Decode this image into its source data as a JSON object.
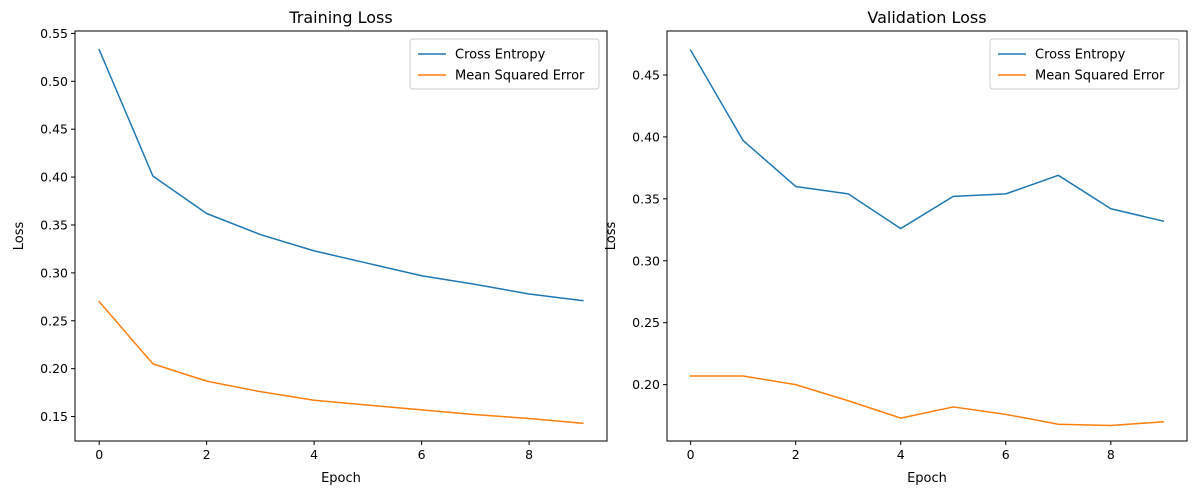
{
  "chart_data": [
    {
      "type": "line",
      "title": "Training Loss",
      "xlabel": "Epoch",
      "ylabel": "Loss",
      "x": [
        0,
        1,
        2,
        3,
        4,
        5,
        6,
        7,
        8,
        9
      ],
      "xlim": [
        -0.45,
        9.45
      ],
      "ylim": [
        0.1245,
        0.5525
      ],
      "xticks": [
        0,
        2,
        4,
        6,
        8
      ],
      "yticks": [
        0.15,
        0.2,
        0.25,
        0.3,
        0.35,
        0.4,
        0.45,
        0.5,
        0.55
      ],
      "xtick_labels": [
        "0",
        "2",
        "4",
        "6",
        "8"
      ],
      "ytick_labels": [
        "0.15",
        "0.20",
        "0.25",
        "0.30",
        "0.35",
        "0.40",
        "0.45",
        "0.50",
        "0.55"
      ],
      "grid": false,
      "legend_position": "upper right",
      "series": [
        {
          "name": "Cross Entropy",
          "color": "#1f77b4",
          "values": [
            0.533,
            0.401,
            0.362,
            0.34,
            0.323,
            0.31,
            0.297,
            0.288,
            0.278,
            0.271
          ]
        },
        {
          "name": "Mean Squared Error",
          "color": "#ff7f0e",
          "values": [
            0.27,
            0.205,
            0.187,
            0.176,
            0.167,
            0.162,
            0.157,
            0.152,
            0.148,
            0.143
          ]
        }
      ]
    },
    {
      "type": "line",
      "title": "Validation Loss",
      "xlabel": "Epoch",
      "ylabel": "Loss",
      "x": [
        0,
        1,
        2,
        3,
        4,
        5,
        6,
        7,
        8,
        9
      ],
      "xlim": [
        -0.45,
        9.45
      ],
      "ylim": [
        0.1545,
        0.4855
      ],
      "xticks": [
        0,
        2,
        4,
        6,
        8
      ],
      "yticks": [
        0.2,
        0.25,
        0.3,
        0.35,
        0.4,
        0.45
      ],
      "xtick_labels": [
        "0",
        "2",
        "4",
        "6",
        "8"
      ],
      "ytick_labels": [
        "0.20",
        "0.25",
        "0.30",
        "0.35",
        "0.40",
        "0.45"
      ],
      "grid": false,
      "legend_position": "upper right",
      "series": [
        {
          "name": "Cross Entropy",
          "color": "#1f77b4",
          "values": [
            0.47,
            0.397,
            0.36,
            0.354,
            0.326,
            0.352,
            0.354,
            0.369,
            0.342,
            0.332
          ]
        },
        {
          "name": "Mean Squared Error",
          "color": "#ff7f0e",
          "values": [
            0.207,
            0.207,
            0.2,
            0.187,
            0.173,
            0.182,
            0.176,
            0.168,
            0.167,
            0.17
          ]
        }
      ]
    }
  ]
}
